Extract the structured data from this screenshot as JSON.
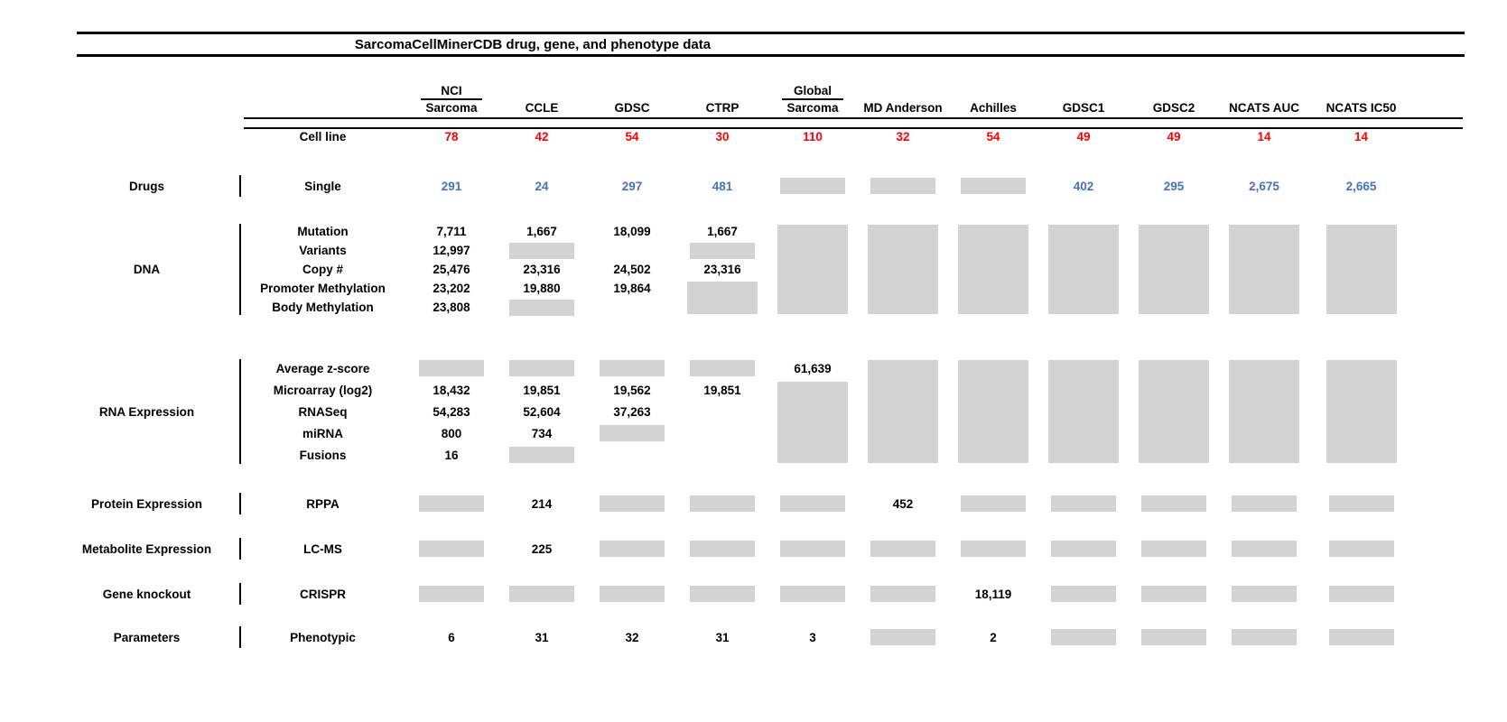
{
  "title": "SarcomaCellMinerCDB drug, gene, and phenotype data",
  "colors": {
    "red": "#FF0000",
    "blue": "#4472C4",
    "gray": "#D3D3D3",
    "black": "#000000"
  },
  "columns": [
    {
      "top": "NCI",
      "bottom": "Sarcoma"
    },
    {
      "top": "",
      "bottom": "CCLE"
    },
    {
      "top": "",
      "bottom": "GDSC"
    },
    {
      "top": "",
      "bottom": "CTRP"
    },
    {
      "top": "Global",
      "bottom": "Sarcoma"
    },
    {
      "top": "",
      "bottom": "MD Anderson"
    },
    {
      "top": "",
      "bottom": "Achilles"
    },
    {
      "top": "",
      "bottom": "GDSC1"
    },
    {
      "top": "",
      "bottom": "GDSC2"
    },
    {
      "top": "",
      "bottom": "NCATS AUC"
    },
    {
      "top": "",
      "bottom": "NCATS IC50"
    }
  ],
  "cell_line_row": {
    "label": "Cell line",
    "color": "red",
    "values": [
      "78",
      "42",
      "54",
      "30",
      "110",
      "32",
      "54",
      "49",
      "49",
      "14",
      "14"
    ]
  },
  "sections": [
    {
      "id": "drugs",
      "category": "Drugs",
      "rows": [
        {
          "label": "Single",
          "color": "blue",
          "cells": [
            "291",
            "24",
            "297",
            "481",
            "G",
            "G",
            "G",
            "402",
            "295",
            "2,675",
            "2,665"
          ]
        }
      ]
    },
    {
      "id": "dna",
      "category": "DNA",
      "rows": [
        {
          "label": "Mutation",
          "cells": [
            "7,711",
            "1,667",
            "18,099",
            "1,667",
            "G5",
            "G5",
            "G5",
            "G5",
            "G5",
            "G5",
            "G5"
          ]
        },
        {
          "label": "Variants",
          "cells": [
            "12,997",
            "G",
            "",
            "G",
            "S",
            "S",
            "S",
            "S",
            "S",
            "S",
            "S"
          ]
        },
        {
          "label": "Copy #",
          "cells": [
            "25,476",
            "23,316",
            "24,502",
            "23,316",
            "S",
            "S",
            "S",
            "S",
            "S",
            "S",
            "S"
          ]
        },
        {
          "label": "Promoter Methylation",
          "cells": [
            "23,202",
            "19,880",
            "19,864",
            "G2",
            "S",
            "S",
            "S",
            "S",
            "S",
            "S",
            "S"
          ]
        },
        {
          "label": "Body Methylation",
          "cells": [
            "23,808",
            "G",
            "",
            "S",
            "S",
            "S",
            "S",
            "S",
            "S",
            "S",
            "S"
          ]
        }
      ]
    },
    {
      "id": "rna",
      "category": "RNA Expression",
      "rows": [
        {
          "label": "Average z-score",
          "cells": [
            "G",
            "G",
            "G",
            "G",
            "61,639",
            "G5",
            "G5",
            "G5",
            "G5",
            "G5",
            "G5"
          ]
        },
        {
          "label": "Microarray (log2)",
          "cells": [
            "18,432",
            "19,851",
            "19,562",
            "19,851",
            "G4",
            "S",
            "S",
            "S",
            "S",
            "S",
            "S"
          ]
        },
        {
          "label": "RNASeq",
          "cells": [
            "54,283",
            "52,604",
            "37,263",
            "",
            "S",
            "S",
            "S",
            "S",
            "S",
            "S",
            "S"
          ]
        },
        {
          "label": "miRNA",
          "cells": [
            "800",
            "734",
            "G",
            "",
            "S",
            "S",
            "S",
            "S",
            "S",
            "S",
            "S"
          ]
        },
        {
          "label": "Fusions",
          "cells": [
            "16",
            "G",
            "",
            "",
            "S",
            "S",
            "S",
            "S",
            "S",
            "S",
            "S"
          ]
        }
      ]
    },
    {
      "id": "protein",
      "category": "Protein Expression",
      "rows": [
        {
          "label": "RPPA",
          "cells": [
            "G",
            "214",
            "G",
            "G",
            "G",
            "452",
            "G",
            "G",
            "G",
            "G",
            "G"
          ]
        }
      ]
    },
    {
      "id": "metabolite",
      "category": "Metabolite Expression",
      "rows": [
        {
          "label": "LC-MS",
          "cells": [
            "G",
            "225",
            "G",
            "G",
            "G",
            "G",
            "G",
            "G",
            "G",
            "G",
            "G"
          ]
        }
      ]
    },
    {
      "id": "knockout",
      "category": "Gene knockout",
      "rows": [
        {
          "label": "CRISPR",
          "cells": [
            "G",
            "G",
            "G",
            "G",
            "G",
            "G",
            "18,119",
            "G",
            "G",
            "G",
            "G"
          ]
        }
      ]
    },
    {
      "id": "parameters",
      "category": "Parameters",
      "rows": [
        {
          "label": "Phenotypic",
          "cells": [
            "6",
            "31",
            "32",
            "31",
            "3",
            "G",
            "2",
            "G",
            "G",
            "G",
            "G"
          ]
        }
      ]
    }
  ]
}
